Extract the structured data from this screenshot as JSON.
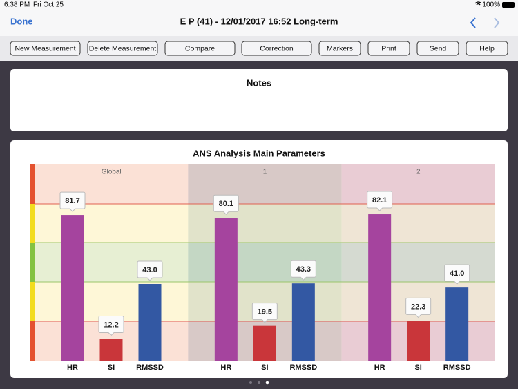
{
  "status_bar": {
    "time": "6:38 PM",
    "date": "Fri Oct 25",
    "battery": "100%"
  },
  "nav": {
    "back": "Done",
    "title": "E P (41) - 12/01/2017 16:52 Long-term"
  },
  "toolbar": {
    "buttons": [
      "New Measurement",
      "Delete Measurement",
      "Compare",
      "Correction",
      "Markers",
      "Print",
      "Send",
      "Help"
    ]
  },
  "notes": {
    "title": "Notes"
  },
  "chart_data": {
    "type": "bar",
    "title": "ANS Analysis Main Parameters",
    "ylim": [
      0,
      110
    ],
    "groups": [
      {
        "name": "Global",
        "categories": [
          "HR",
          "SI",
          "RMSSD"
        ],
        "values": [
          81.7,
          12.2,
          43
        ],
        "value_labels": [
          "81.7",
          "12.2",
          "43.0"
        ]
      },
      {
        "name": "1",
        "categories": [
          "HR",
          "SI",
          "RMSSD"
        ],
        "values": [
          80.1,
          19.5,
          43.3
        ],
        "value_labels": [
          "80.1",
          "19.5",
          "43.3"
        ]
      },
      {
        "name": "2",
        "categories": [
          "HR",
          "SI",
          "RMSSD"
        ],
        "values": [
          82.1,
          22.3,
          41
        ],
        "value_labels": [
          "82.1",
          "22.3",
          "41.0"
        ]
      }
    ],
    "colors": [
      "#a5449e",
      "#c9363a",
      "#3358a3"
    ]
  }
}
